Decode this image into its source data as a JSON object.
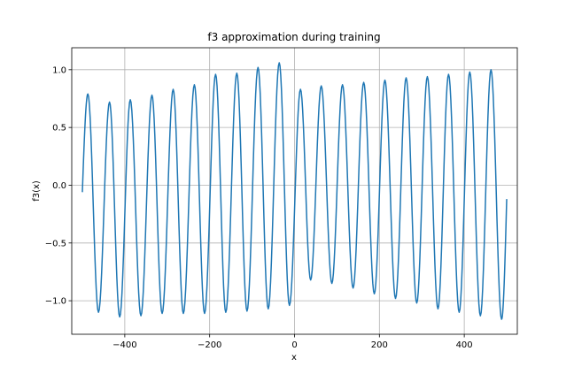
{
  "chart_data": {
    "type": "line",
    "title": "f3 approximation during training",
    "xlabel": "x",
    "ylabel": "f3(x)",
    "xlim": [
      -525,
      525
    ],
    "ylim": [
      -1.29,
      1.19
    ],
    "xticks": [
      -400,
      -200,
      0,
      200,
      400
    ],
    "xtick_labels": [
      "−400",
      "−200",
      "0",
      "200",
      "400"
    ],
    "yticks": [
      -1.0,
      -0.5,
      0.0,
      0.5,
      1.0
    ],
    "ytick_labels": [
      "−1.0",
      "−0.5",
      "0.0",
      "0.5",
      "1.0"
    ],
    "grid": true,
    "legend": "none",
    "series": [
      {
        "color": "#1f77b4",
        "function": "approx sinusoid",
        "x_range": [
          -500,
          500
        ],
        "period": 50,
        "start_value": -0.06,
        "end_value": -0.12,
        "maxima": [
          {
            "x": -487,
            "y": 0.79
          },
          {
            "x": -436,
            "y": 0.72
          },
          {
            "x": -387,
            "y": 0.74
          },
          {
            "x": -336,
            "y": 0.78
          },
          {
            "x": -286,
            "y": 0.83
          },
          {
            "x": -236,
            "y": 0.87
          },
          {
            "x": -186,
            "y": 0.96
          },
          {
            "x": -136,
            "y": 0.97
          },
          {
            "x": -86,
            "y": 1.02
          },
          {
            "x": -36,
            "y": 1.06
          },
          {
            "x": 14,
            "y": 0.83
          },
          {
            "x": 63,
            "y": 0.86
          },
          {
            "x": 113,
            "y": 0.87
          },
          {
            "x": 163,
            "y": 0.89
          },
          {
            "x": 213,
            "y": 0.91
          },
          {
            "x": 263,
            "y": 0.93
          },
          {
            "x": 313,
            "y": 0.94
          },
          {
            "x": 363,
            "y": 0.96
          },
          {
            "x": 413,
            "y": 0.98
          },
          {
            "x": 463,
            "y": 1.0
          }
        ],
        "minima": [
          {
            "x": -462,
            "y": -1.1
          },
          {
            "x": -412,
            "y": -1.14
          },
          {
            "x": -362,
            "y": -1.13
          },
          {
            "x": -312,
            "y": -1.11
          },
          {
            "x": -262,
            "y": -1.11
          },
          {
            "x": -212,
            "y": -1.11
          },
          {
            "x": -162,
            "y": -1.1
          },
          {
            "x": -112,
            "y": -1.09
          },
          {
            "x": -62,
            "y": -1.07
          },
          {
            "x": -12,
            "y": -1.04
          },
          {
            "x": 38,
            "y": -0.82
          },
          {
            "x": 88,
            "y": -0.85
          },
          {
            "x": 138,
            "y": -0.89
          },
          {
            "x": 188,
            "y": -0.94
          },
          {
            "x": 238,
            "y": -0.98
          },
          {
            "x": 288,
            "y": -1.02
          },
          {
            "x": 338,
            "y": -1.07
          },
          {
            "x": 388,
            "y": -1.1
          },
          {
            "x": 438,
            "y": -1.13
          },
          {
            "x": 488,
            "y": -1.16
          }
        ]
      }
    ]
  }
}
